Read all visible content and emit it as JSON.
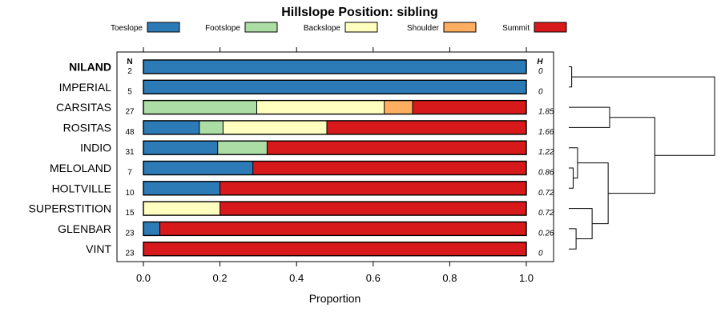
{
  "chart_data": {
    "type": "bar",
    "orientation": "horizontal",
    "stacked": true,
    "title": "Hillslope Position: sibling",
    "xlabel": "Proportion",
    "xlim": [
      0,
      1
    ],
    "xticks": [
      "0.0",
      "0.2",
      "0.4",
      "0.6",
      "0.8",
      "1.0"
    ],
    "xtick_values": [
      0,
      0.2,
      0.4,
      0.6,
      0.8,
      1.0
    ],
    "legend_placement": "top",
    "n_header": "N",
    "h_header": "H",
    "series": [
      {
        "name": "Toeslope",
        "color": "#2c7bb6"
      },
      {
        "name": "Footslope",
        "color": "#abdda4"
      },
      {
        "name": "Backslope",
        "color": "#ffffbf"
      },
      {
        "name": "Shoulder",
        "color": "#fdae61"
      },
      {
        "name": "Summit",
        "color": "#d7191c"
      }
    ],
    "rows": [
      {
        "label": "NILAND",
        "bold": true,
        "n": "2",
        "h": "0",
        "values": [
          1.0,
          0,
          0,
          0,
          0
        ]
      },
      {
        "label": "IMPERIAL",
        "bold": false,
        "n": "5",
        "h": "0",
        "values": [
          1.0,
          0,
          0,
          0,
          0
        ]
      },
      {
        "label": "CARSITAS",
        "bold": false,
        "n": "27",
        "h": "1.85",
        "values": [
          0,
          0.296,
          0.333,
          0.074,
          0.297
        ]
      },
      {
        "label": "ROSITAS",
        "bold": false,
        "n": "48",
        "h": "1.66",
        "values": [
          0.146,
          0.062,
          0.271,
          0,
          0.521
        ]
      },
      {
        "label": "INDIO",
        "bold": false,
        "n": "31",
        "h": "1.22",
        "values": [
          0.194,
          0.129,
          0,
          0,
          0.677
        ]
      },
      {
        "label": "MELOLAND",
        "bold": false,
        "n": "7",
        "h": "0.86",
        "values": [
          0.286,
          0,
          0,
          0,
          0.714
        ]
      },
      {
        "label": "HOLTVILLE",
        "bold": false,
        "n": "10",
        "h": "0.72",
        "values": [
          0.2,
          0,
          0,
          0,
          0.8
        ]
      },
      {
        "label": "SUPERSTITION",
        "bold": false,
        "n": "15",
        "h": "0.72",
        "values": [
          0,
          0,
          0.2,
          0,
          0.8
        ]
      },
      {
        "label": "GLENBAR",
        "bold": false,
        "n": "23",
        "h": "0.26",
        "values": [
          0.043,
          0,
          0,
          0,
          0.957
        ]
      },
      {
        "label": "VINT",
        "bold": false,
        "n": "23",
        "h": "0",
        "values": [
          0,
          0,
          0,
          0,
          1.0
        ]
      }
    ],
    "dendrogram": {
      "leaves": [
        "NILAND",
        "IMPERIAL",
        "CARSITAS",
        "ROSITAS",
        "INDIO",
        "MELOLAND",
        "HOLTVILLE",
        "SUPERSTITION",
        "GLENBAR",
        "VINT"
      ],
      "merges": [
        {
          "a": 0,
          "b": 1,
          "height": 0.02
        },
        {
          "a": 2,
          "b": 3,
          "height": 0.28
        },
        {
          "a": 5,
          "b": 6,
          "height": 0.03
        },
        {
          "a": 4,
          "b": "m3",
          "height": 0.06
        },
        {
          "a": 8,
          "b": 9,
          "height": 0.05
        },
        {
          "a": 7,
          "b": "m5",
          "height": 0.16
        },
        {
          "a": "m4",
          "b": "m6",
          "height": 0.27
        },
        {
          "a": "m2",
          "b": "m7",
          "height": 0.59
        },
        {
          "a": "m1",
          "b": "m8",
          "height": 1.0
        }
      ]
    }
  }
}
